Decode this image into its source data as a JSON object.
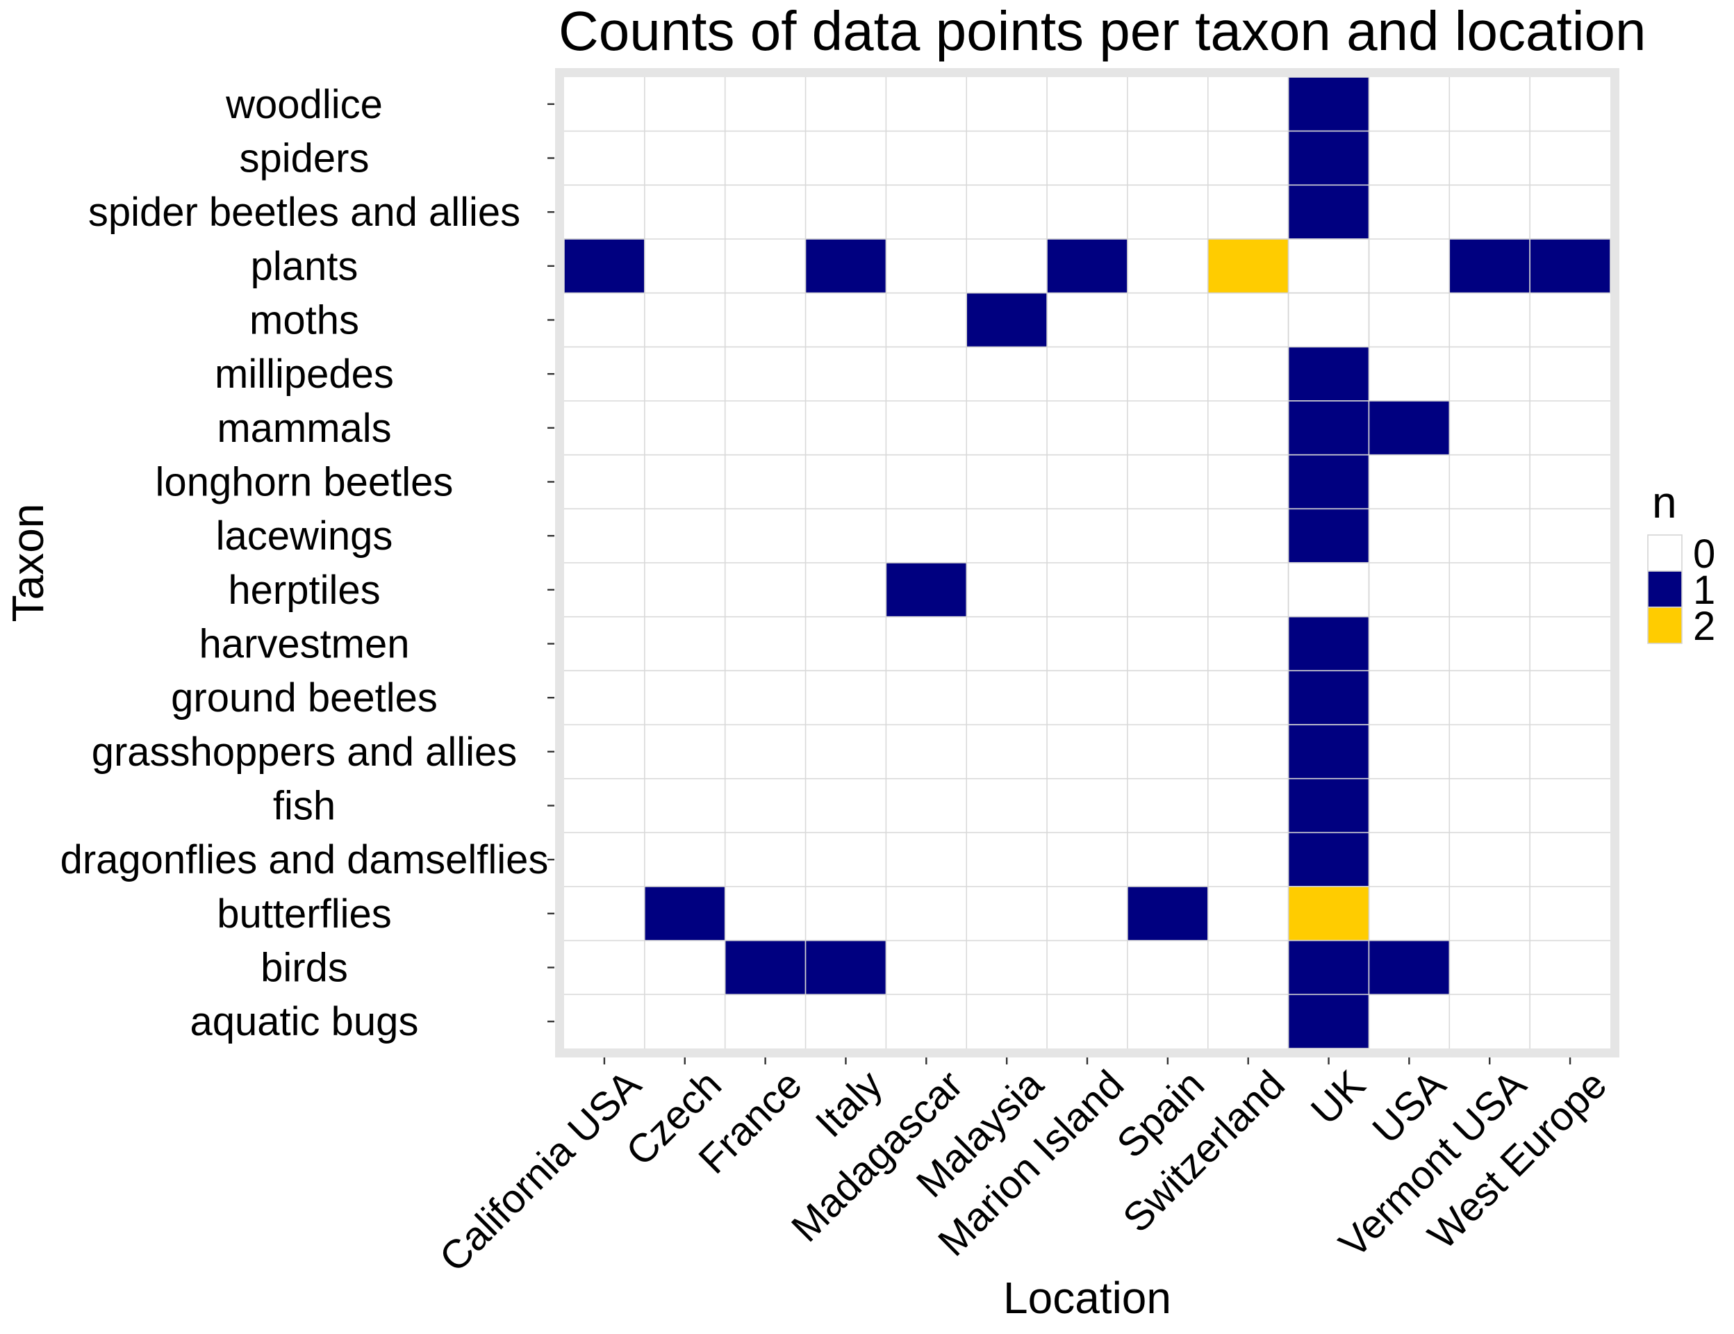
{
  "chart_data": {
    "type": "heatmap",
    "title": "Counts of data points per taxon and location",
    "xlabel": "Location",
    "ylabel": "Taxon",
    "x": [
      "California USA",
      "Czech",
      "France",
      "Italy",
      "Madagascar",
      "Malaysia",
      "Marion Island",
      "Spain",
      "Switzerland",
      "UK",
      "USA",
      "Vermont USA",
      "West Europe"
    ],
    "y": [
      "woodlice",
      "spiders",
      "spider beetles and allies",
      "plants",
      "moths",
      "millipedes",
      "mammals",
      "longhorn beetles",
      "lacewings",
      "herptiles",
      "harvestmen",
      "ground beetles",
      "grasshoppers and allies",
      "fish",
      "dragonflies and damselflies",
      "butterflies",
      "birds",
      "aquatic bugs"
    ],
    "values": [
      [
        null,
        null,
        null,
        null,
        null,
        null,
        null,
        null,
        null,
        1,
        null,
        null,
        null
      ],
      [
        null,
        null,
        null,
        null,
        null,
        null,
        null,
        null,
        null,
        1,
        null,
        null,
        null
      ],
      [
        null,
        null,
        null,
        null,
        null,
        null,
        null,
        null,
        null,
        1,
        null,
        null,
        null
      ],
      [
        1,
        null,
        null,
        1,
        null,
        null,
        1,
        null,
        2,
        0,
        null,
        1,
        1
      ],
      [
        null,
        null,
        null,
        null,
        null,
        1,
        null,
        null,
        null,
        0,
        null,
        null,
        null
      ],
      [
        null,
        null,
        null,
        null,
        null,
        null,
        null,
        null,
        null,
        1,
        null,
        null,
        null
      ],
      [
        null,
        null,
        null,
        null,
        null,
        null,
        null,
        null,
        null,
        1,
        1,
        null,
        null
      ],
      [
        null,
        null,
        null,
        null,
        null,
        null,
        null,
        null,
        null,
        1,
        null,
        null,
        null
      ],
      [
        null,
        null,
        null,
        null,
        null,
        null,
        null,
        null,
        null,
        1,
        null,
        null,
        null
      ],
      [
        null,
        null,
        null,
        null,
        1,
        null,
        null,
        null,
        null,
        0,
        null,
        null,
        null
      ],
      [
        null,
        null,
        null,
        null,
        null,
        null,
        null,
        null,
        null,
        1,
        null,
        null,
        null
      ],
      [
        null,
        null,
        null,
        null,
        null,
        null,
        null,
        null,
        null,
        1,
        null,
        null,
        null
      ],
      [
        null,
        null,
        null,
        null,
        null,
        null,
        null,
        null,
        null,
        1,
        null,
        null,
        null
      ],
      [
        null,
        null,
        null,
        null,
        null,
        null,
        null,
        null,
        null,
        1,
        null,
        null,
        null
      ],
      [
        null,
        null,
        null,
        null,
        null,
        null,
        null,
        null,
        null,
        1,
        null,
        null,
        null
      ],
      [
        null,
        1,
        null,
        null,
        null,
        null,
        null,
        1,
        null,
        2,
        null,
        null,
        null
      ],
      [
        null,
        null,
        1,
        1,
        null,
        null,
        null,
        null,
        null,
        1,
        1,
        null,
        null
      ],
      [
        null,
        null,
        null,
        null,
        null,
        null,
        null,
        null,
        null,
        1,
        null,
        null,
        null
      ]
    ],
    "grid": true,
    "legend": {
      "title": "n",
      "position": "right",
      "entries": [
        {
          "label": "0",
          "value": 0,
          "color": "#FFFFFF"
        },
        {
          "label": "1",
          "value": 1,
          "color": "#000080"
        },
        {
          "label": "2",
          "value": 2,
          "color": "#FFCC00"
        }
      ]
    }
  }
}
